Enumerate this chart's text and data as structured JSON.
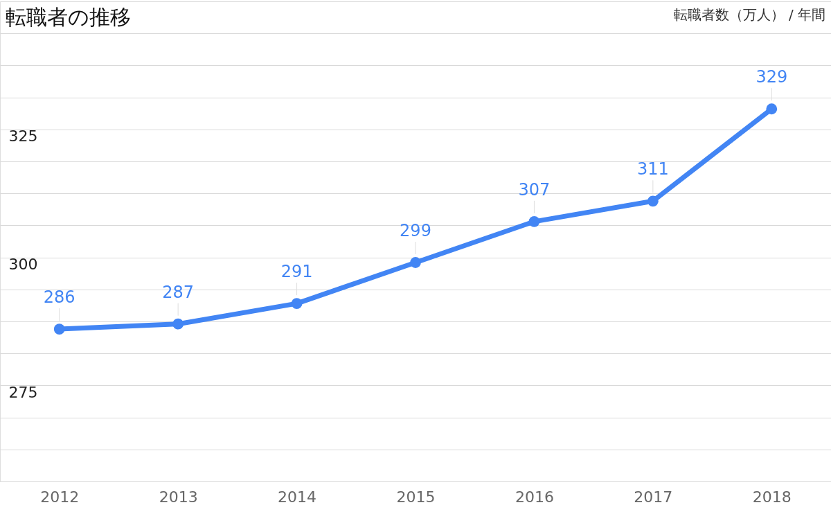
{
  "chart_data": {
    "type": "line",
    "title": "転職者の推移",
    "subtitle": "転職者数（万人） / 年間",
    "categories": [
      "2012",
      "2013",
      "2014",
      "2015",
      "2016",
      "2017",
      "2018"
    ],
    "series": [
      {
        "color": "#4285f4",
        "values": [
          286,
          287,
          291,
          299,
          307,
          311,
          329
        ]
      }
    ],
    "ylim": [
      256.25,
      350
    ],
    "yticks": [
      {
        "value": 256.25,
        "label": null
      },
      {
        "value": 262.5,
        "label": null
      },
      {
        "value": 268.75,
        "label": null
      },
      275,
      {
        "value": 281.25,
        "label": null
      },
      {
        "value": 287.5,
        "label": null
      },
      {
        "value": 293.75,
        "label": null
      },
      300,
      {
        "value": 306.25,
        "label": null
      },
      {
        "value": 312.5,
        "label": null
      },
      {
        "value": 318.75,
        "label": null
      },
      325,
      {
        "value": 331.25,
        "label": null
      },
      {
        "value": 337.5,
        "label": null
      },
      {
        "value": 343.75,
        "label": null
      },
      {
        "value": 350,
        "label": null
      }
    ],
    "grid": "y",
    "marker": "circle",
    "line_style": "solid",
    "data_labels": true
  }
}
